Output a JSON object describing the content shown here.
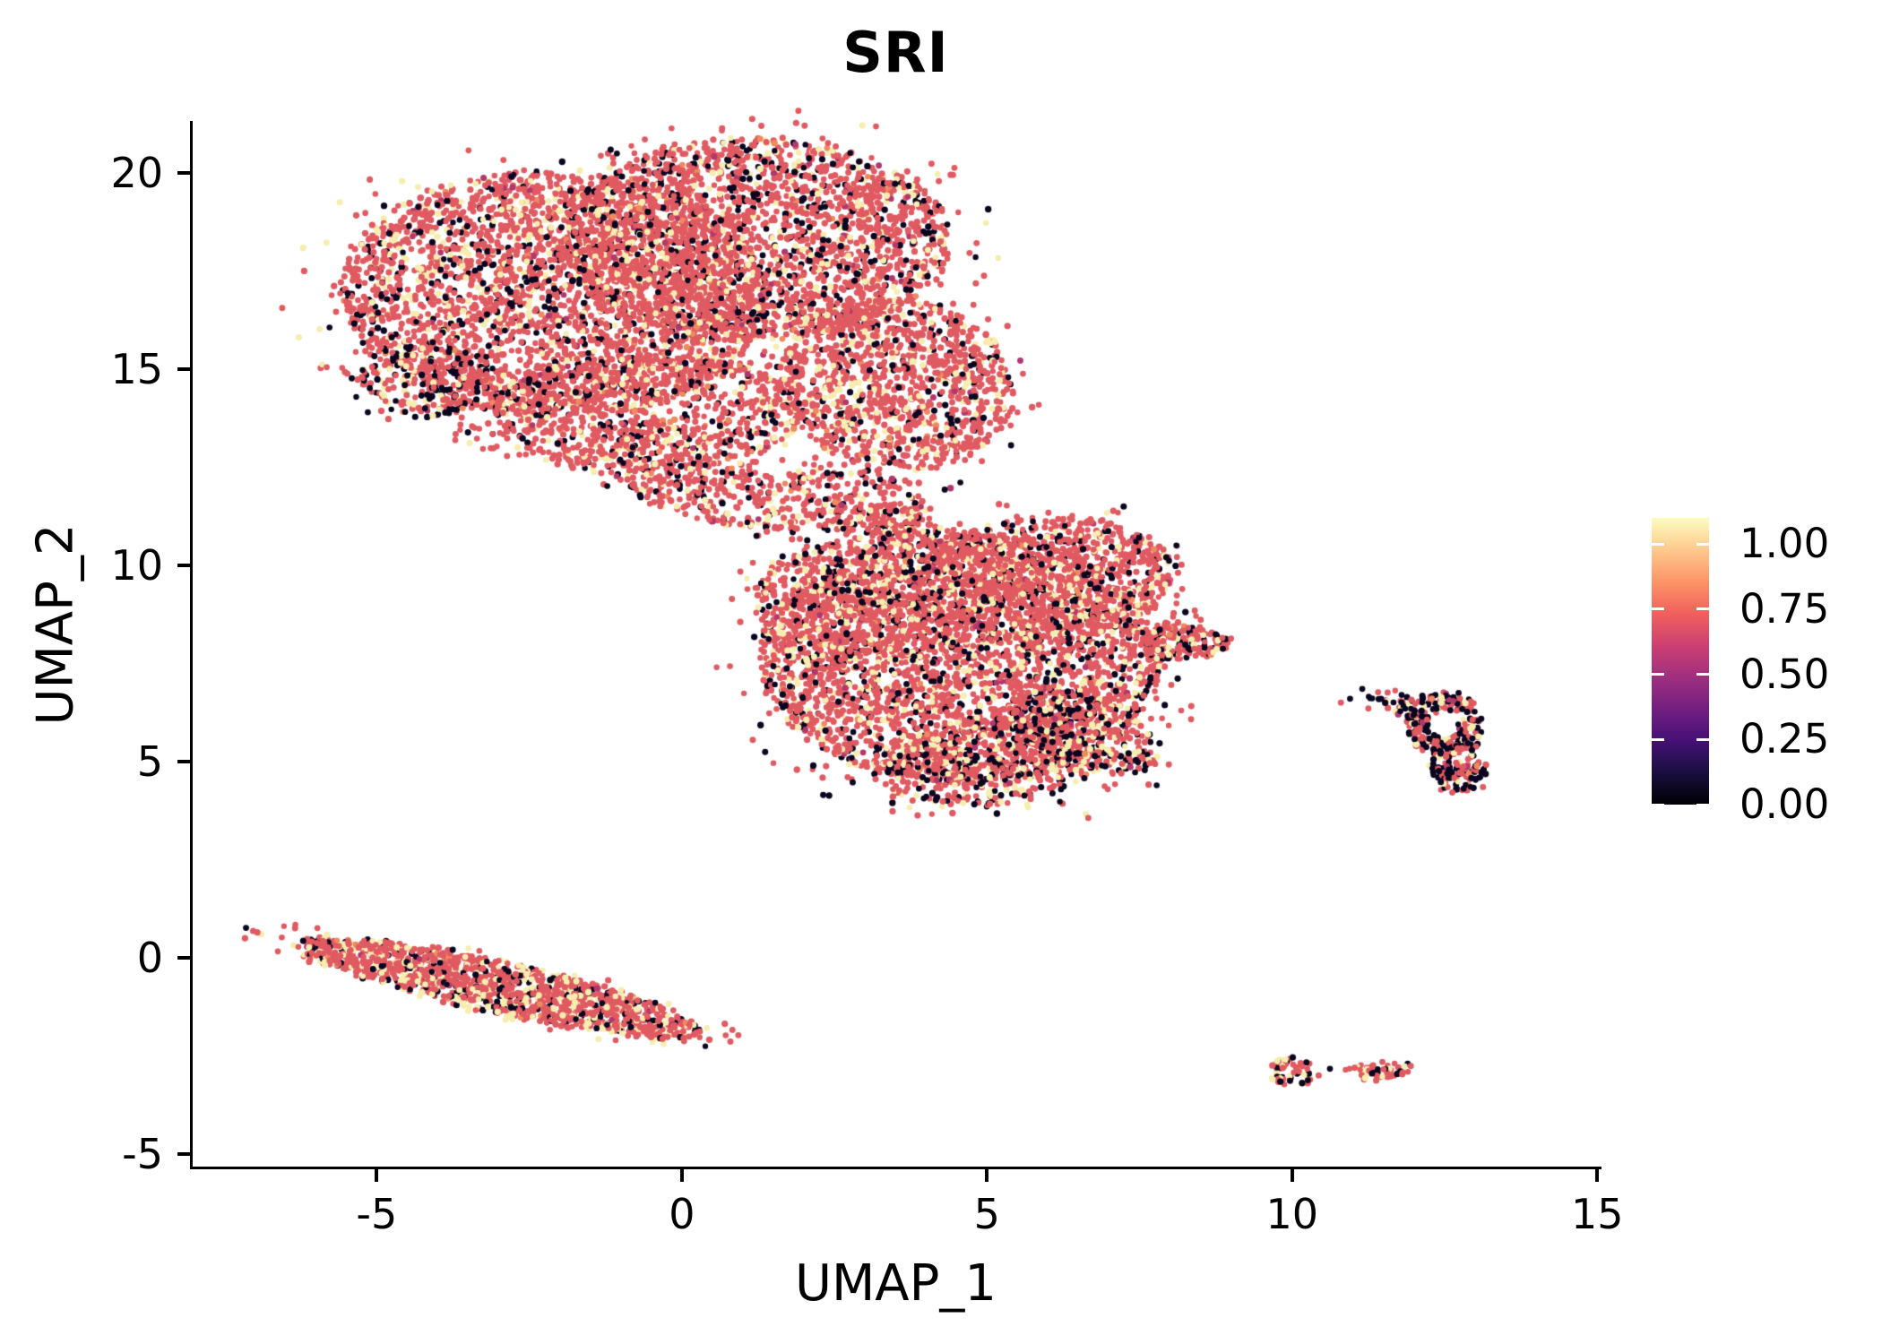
{
  "title": "SRI",
  "chart_data": {
    "type": "scatter",
    "title": "SRI",
    "subtitle": "",
    "xlabel": "UMAP_1",
    "ylabel": "UMAP_2",
    "xlim": [
      -8.06,
      15.07
    ],
    "ylim": [
      -5.39,
      21.32
    ],
    "grid": false,
    "legend_position": "right",
    "x_ticks": [
      {
        "v": -5,
        "label": "-5"
      },
      {
        "v": 0,
        "label": "0"
      },
      {
        "v": 5,
        "label": "5"
      },
      {
        "v": 10,
        "label": "10"
      },
      {
        "v": 15,
        "label": "15"
      }
    ],
    "y_ticks": [
      {
        "v": 20,
        "label": "20"
      },
      {
        "v": 15,
        "label": "15"
      },
      {
        "v": 10,
        "label": "10"
      },
      {
        "v": 5,
        "label": "5"
      },
      {
        "v": 0,
        "label": "0"
      },
      {
        "v": -5,
        "label": "-5"
      }
    ],
    "colorbar": {
      "vmin": 0.0,
      "vmax": 1.1,
      "palette_name": "magma",
      "tick_labels": [
        {
          "v": 1.0,
          "label": "1.00"
        },
        {
          "v": 0.75,
          "label": "0.75"
        },
        {
          "v": 0.5,
          "label": "0.50"
        },
        {
          "v": 0.25,
          "label": "0.25"
        },
        {
          "v": 0.0,
          "label": "0.00"
        }
      ],
      "gradient_stops_bottom_to_top": [
        "#000004",
        "#180F3E",
        "#451077",
        "#721F81",
        "#9F2F7F",
        "#CD4071",
        "#F1605D",
        "#FD9567",
        "#FEC98D",
        "#FCFDBF"
      ]
    },
    "point_radius_px": 3.4,
    "seed": 1234,
    "palette": {
      "red": "#E05A61",
      "black": "#0B0620",
      "cream": "#F6EDAF",
      "orange": "#EF8A5E",
      "maroon": "#B0386C"
    },
    "color_mixes": {
      "main": [
        {
          "c": "red",
          "w": 0.7
        },
        {
          "c": "black",
          "w": 0.14
        },
        {
          "c": "cream",
          "w": 0.13
        },
        {
          "c": "orange",
          "w": 0.015
        },
        {
          "c": "maroon",
          "w": 0.015
        }
      ],
      "edge": [
        {
          "c": "red",
          "w": 0.52
        },
        {
          "c": "black",
          "w": 0.3
        },
        {
          "c": "cream",
          "w": 0.15
        },
        {
          "c": "orange",
          "w": 0.015
        },
        {
          "c": "maroon",
          "w": 0.015
        }
      ],
      "tail": [
        {
          "c": "red",
          "w": 0.62
        },
        {
          "c": "cream",
          "w": 0.23
        },
        {
          "c": "black",
          "w": 0.12
        },
        {
          "c": "orange",
          "w": 0.02
        },
        {
          "c": "maroon",
          "w": 0.01
        }
      ],
      "ring": [
        {
          "c": "black",
          "w": 0.44
        },
        {
          "c": "red",
          "w": 0.38
        },
        {
          "c": "cream",
          "w": 0.13
        },
        {
          "c": "maroon",
          "w": 0.03
        },
        {
          "c": "orange",
          "w": 0.02
        }
      ],
      "tiny": [
        {
          "c": "red",
          "w": 0.6
        },
        {
          "c": "cream",
          "w": 0.22
        },
        {
          "c": "black",
          "w": 0.18
        }
      ]
    },
    "clusters": [
      {
        "name": "top-left-mass",
        "cx": -2.1,
        "cy": 16.9,
        "rx": 3.5,
        "ry": 3.1,
        "rot": -10,
        "n": 3000,
        "mix": "main",
        "mode": "blob"
      },
      {
        "name": "top-right-mass",
        "cx": 1.2,
        "cy": 18.3,
        "rx": 3.2,
        "ry": 2.6,
        "rot": 0,
        "n": 2400,
        "mix": "main",
        "mode": "blob"
      },
      {
        "name": "top-right-lobe",
        "cx": 3.5,
        "cy": 14.6,
        "rx": 1.9,
        "ry": 2.2,
        "rot": 15,
        "n": 1200,
        "mix": "main",
        "mode": "blob"
      },
      {
        "name": "top-lower-fill",
        "cx": -0.6,
        "cy": 13.9,
        "rx": 2.6,
        "ry": 1.5,
        "rot": 0,
        "n": 800,
        "mix": "main",
        "mode": "blob"
      },
      {
        "name": "top-left-edge",
        "cx": -4.2,
        "cy": 14.8,
        "rx": 1.1,
        "ry": 1.0,
        "rot": -20,
        "n": 240,
        "mix": "edge",
        "mode": "blob"
      },
      {
        "name": "top-wedge",
        "cx": 0.7,
        "cy": 11.8,
        "rx": 1.7,
        "ry": 0.75,
        "rot": -18,
        "n": 300,
        "mix": "main",
        "mode": "blob"
      },
      {
        "name": "below-top-scatter",
        "cx": -1.2,
        "cy": 13.0,
        "rx": 2.6,
        "ry": 0.7,
        "rot": -8,
        "n": 130,
        "mix": "main",
        "mode": "sparse"
      },
      {
        "name": "bridge-upper",
        "cx": 2.9,
        "cy": 11.7,
        "rx": 1.3,
        "ry": 0.8,
        "rot": -28,
        "n": 190,
        "mix": "main",
        "mode": "sparse"
      },
      {
        "name": "bridge-lower",
        "cx": 3.9,
        "cy": 10.7,
        "rx": 0.9,
        "ry": 0.55,
        "rot": -20,
        "n": 80,
        "mix": "main",
        "mode": "sparse"
      },
      {
        "name": "mid-mass",
        "cx": 4.6,
        "cy": 7.6,
        "rx": 3.3,
        "ry": 3.2,
        "rot": 0,
        "n": 3400,
        "mix": "main",
        "mode": "blob"
      },
      {
        "name": "mid-top-right",
        "cx": 5.9,
        "cy": 9.6,
        "rx": 2.2,
        "ry": 1.6,
        "rot": 12,
        "n": 1000,
        "mix": "main",
        "mode": "blob"
      },
      {
        "name": "mid-top-left",
        "cx": 2.6,
        "cy": 9.0,
        "rx": 1.4,
        "ry": 1.6,
        "rot": 0,
        "n": 550,
        "mix": "main",
        "mode": "blob"
      },
      {
        "name": "mid-right-tip",
        "cx": 8.2,
        "cy": 8.05,
        "rx": 0.75,
        "ry": 0.45,
        "rot": -10,
        "n": 170,
        "mix": "main",
        "mode": "blob"
      },
      {
        "name": "mid-bottom",
        "cx": 5.0,
        "cy": 4.9,
        "rx": 1.9,
        "ry": 1.0,
        "rot": 8,
        "n": 420,
        "mix": "edge",
        "mode": "blob"
      },
      {
        "name": "mid-lower-right-edge",
        "cx": 6.6,
        "cy": 5.8,
        "rx": 1.5,
        "ry": 0.8,
        "rot": -40,
        "n": 350,
        "mix": "edge",
        "mode": "blob"
      },
      {
        "name": "mid-top-scatter",
        "cx": 3.1,
        "cy": 11.2,
        "rx": 0.9,
        "ry": 0.5,
        "rot": -15,
        "n": 70,
        "mix": "main",
        "mode": "sparse"
      },
      {
        "name": "lower-left-band",
        "cx": -3.0,
        "cy": -0.75,
        "rx": 3.5,
        "ry": 0.62,
        "rot": -19,
        "n": 1450,
        "mix": "tail",
        "mode": "blob"
      },
      {
        "name": "right-ring",
        "cx": 12.5,
        "cy": 5.95,
        "rx": 0.62,
        "ry": 0.85,
        "rot": 0,
        "n": 215,
        "mix": "ring",
        "mode": "ring",
        "inner": 0.45
      },
      {
        "name": "right-bottom",
        "cx": 12.7,
        "cy": 4.85,
        "rx": 0.45,
        "ry": 0.62,
        "rot": 10,
        "n": 130,
        "mix": "ring",
        "mode": "blob"
      },
      {
        "name": "right-arm",
        "cx": 11.75,
        "cy": 6.45,
        "rx": 0.55,
        "ry": 0.2,
        "rot": -35,
        "n": 42,
        "mix": "ring",
        "mode": "sparse"
      },
      {
        "name": "small-left",
        "cx": 10.0,
        "cy": -2.93,
        "rx": 0.4,
        "ry": 0.36,
        "rot": 0,
        "n": 64,
        "mix": "tiny",
        "mode": "blob"
      },
      {
        "name": "small-right",
        "cx": 11.5,
        "cy": -2.87,
        "rx": 0.52,
        "ry": 0.2,
        "rot": 8,
        "n": 52,
        "mix": "tiny",
        "mode": "blob"
      }
    ],
    "singles": [
      {
        "x": 10.62,
        "y": -2.83,
        "c": "black"
      },
      {
        "x": 6.62,
        "y": 3.66,
        "c": "cream"
      },
      {
        "x": 6.66,
        "y": 3.56,
        "c": "red"
      },
      {
        "x": 7.62,
        "y": 7.28,
        "c": "red"
      },
      {
        "x": 7.5,
        "y": 7.15,
        "c": "cream"
      },
      {
        "x": 8.02,
        "y": 6.95,
        "c": "red"
      },
      {
        "x": 9.0,
        "y": 8.13,
        "c": "red"
      },
      {
        "x": 10.95,
        "y": 6.6,
        "c": "black"
      },
      {
        "x": 11.15,
        "y": 6.85,
        "c": "black"
      },
      {
        "x": 11.25,
        "y": 6.35,
        "c": "red"
      },
      {
        "x": 10.8,
        "y": 6.5,
        "c": "red"
      }
    ]
  }
}
